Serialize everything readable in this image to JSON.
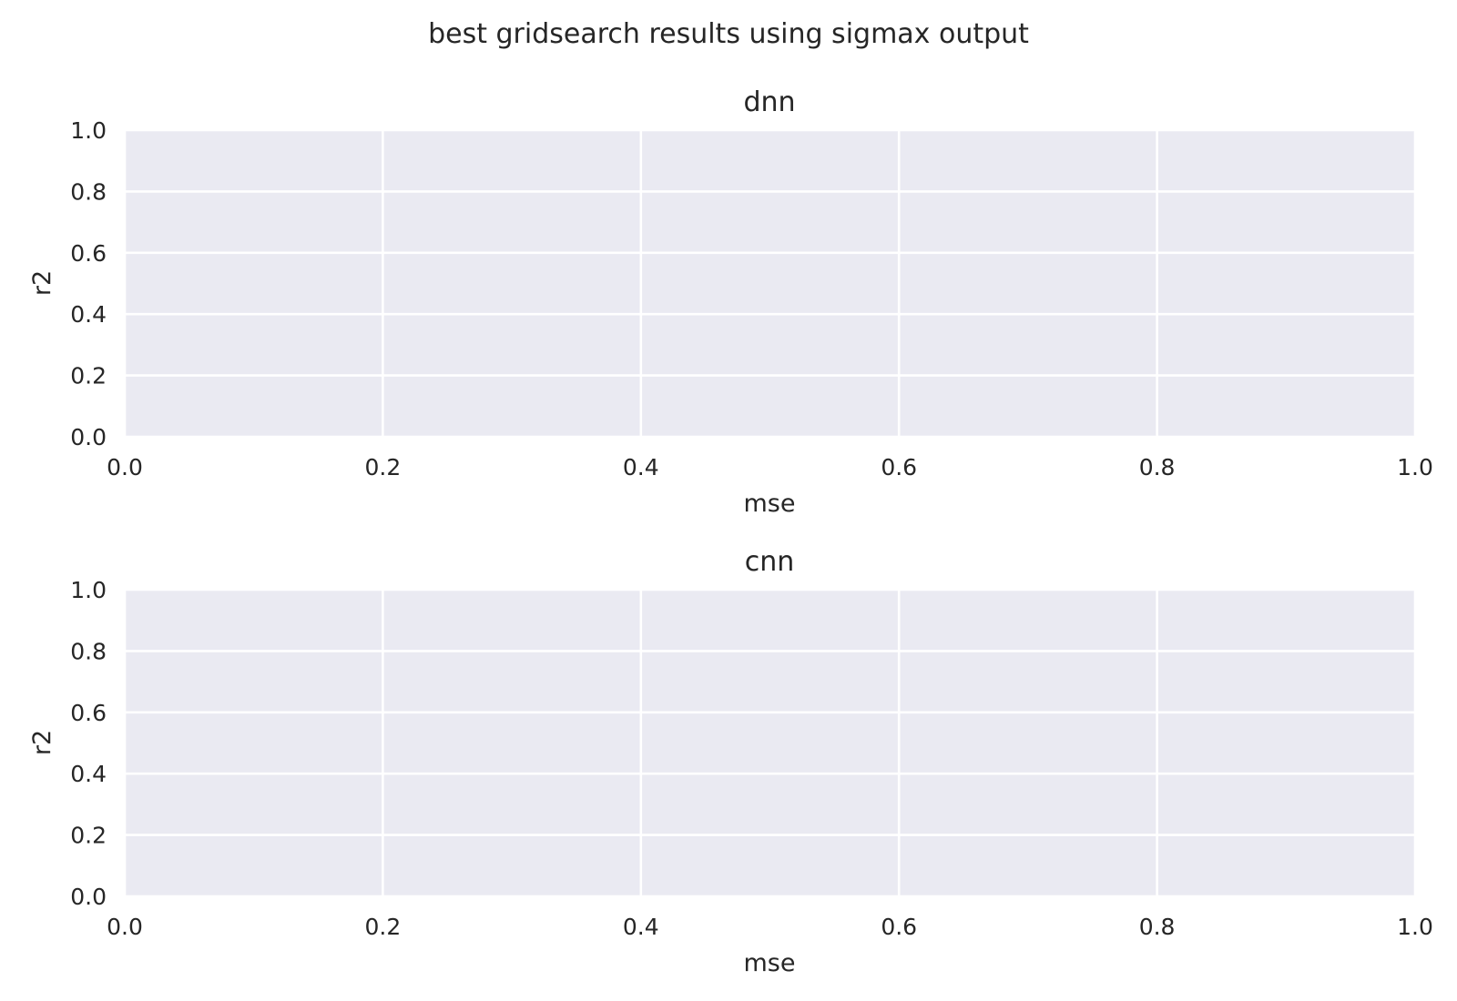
{
  "figure": {
    "suptitle": "best gridsearch results using sigmax output"
  },
  "chart_data": [
    {
      "type": "scatter",
      "title": "dnn",
      "xlabel": "mse",
      "ylabel": "r2",
      "xlim": [
        0.0,
        1.0
      ],
      "ylim": [
        0.0,
        1.0
      ],
      "xticks": [
        "0.0",
        "0.2",
        "0.4",
        "0.6",
        "0.8",
        "1.0"
      ],
      "yticks": [
        "0.0",
        "0.2",
        "0.4",
        "0.6",
        "0.8",
        "1.0"
      ],
      "grid": true,
      "background": "#eaeaf2",
      "series": []
    },
    {
      "type": "scatter",
      "title": "cnn",
      "xlabel": "mse",
      "ylabel": "r2",
      "xlim": [
        0.0,
        1.0
      ],
      "ylim": [
        0.0,
        1.0
      ],
      "xticks": [
        "0.0",
        "0.2",
        "0.4",
        "0.6",
        "0.8",
        "1.0"
      ],
      "yticks": [
        "0.0",
        "0.2",
        "0.4",
        "0.6",
        "0.8",
        "1.0"
      ],
      "grid": true,
      "background": "#eaeaf2",
      "series": []
    }
  ]
}
